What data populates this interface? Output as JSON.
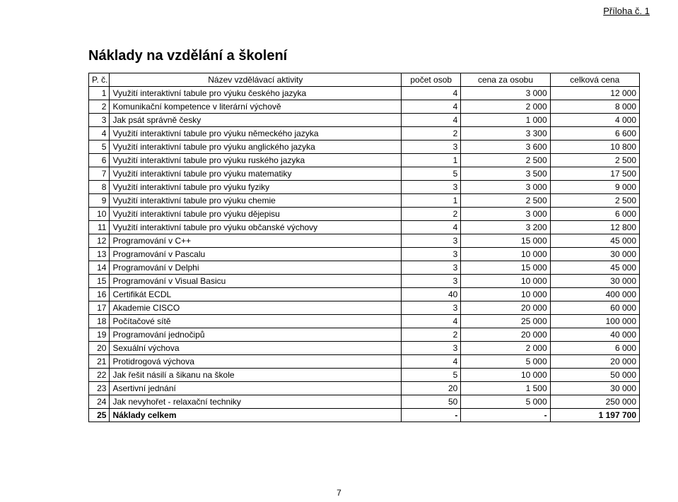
{
  "appendix_label": "Příloha č. 1",
  "title": "Náklady na vzdělání a školení",
  "page_number": "7",
  "table": {
    "columns": [
      "P. č.",
      "Název vzdělávací aktivity",
      "počet osob",
      "cena za osobu",
      "celková cena"
    ],
    "rows": [
      [
        "1",
        "Využití interaktivní tabule pro výuku českého jazyka",
        "4",
        "3 000",
        "12 000"
      ],
      [
        "2",
        "Komunikační kompetence v literární výchově",
        "4",
        "2 000",
        "8 000"
      ],
      [
        "3",
        "Jak psát správně česky",
        "4",
        "1 000",
        "4 000"
      ],
      [
        "4",
        "Využití interaktivní tabule pro výuku německého jazyka",
        "2",
        "3 300",
        "6 600"
      ],
      [
        "5",
        "Využití interaktivní tabule pro výuku anglického jazyka",
        "3",
        "3 600",
        "10 800"
      ],
      [
        "6",
        "Využití interaktivní tabule pro výuku ruského jazyka",
        "1",
        "2 500",
        "2 500"
      ],
      [
        "7",
        "Využití interaktivní tabule pro výuku matematiky",
        "5",
        "3 500",
        "17 500"
      ],
      [
        "8",
        "Využití interaktivní tabule pro výuku fyziky",
        "3",
        "3 000",
        "9 000"
      ],
      [
        "9",
        "Využití interaktivní tabule pro výuku chemie",
        "1",
        "2 500",
        "2 500"
      ],
      [
        "10",
        "Využití interaktivní tabule pro výuku dějepisu",
        "2",
        "3 000",
        "6 000"
      ],
      [
        "11",
        "Využití interaktivní tabule pro výuku občanské výchovy",
        "4",
        "3 200",
        "12 800"
      ],
      [
        "12",
        "Programování v C++",
        "3",
        "15 000",
        "45 000"
      ],
      [
        "13",
        "Programování v Pascalu",
        "3",
        "10 000",
        "30 000"
      ],
      [
        "14",
        "Programování v Delphi",
        "3",
        "15 000",
        "45 000"
      ],
      [
        "15",
        "Programování v Visual Basicu",
        "3",
        "10 000",
        "30 000"
      ],
      [
        "16",
        "Certifikát ECDL",
        "40",
        "10 000",
        "400 000"
      ],
      [
        "17",
        "Akademie CISCO",
        "3",
        "20 000",
        "60 000"
      ],
      [
        "18",
        "Počítačové sítě",
        "4",
        "25 000",
        "100 000"
      ],
      [
        "19",
        "Programování jednočipů",
        "2",
        "20 000",
        "40 000"
      ],
      [
        "20",
        "Sexuální výchova",
        "3",
        "2 000",
        "6 000"
      ],
      [
        "21",
        "Protidrogová výchova",
        "4",
        "5 000",
        "20 000"
      ],
      [
        "22",
        "Jak řešit násilí a šikanu na škole",
        "5",
        "10 000",
        "50 000"
      ],
      [
        "23",
        "Asertivní jednání",
        "20",
        "1 500",
        "30 000"
      ],
      [
        "24",
        "Jak nevyhořet - relaxační techniky",
        "50",
        "5 000",
        "250 000"
      ]
    ],
    "total_row": [
      "25",
      "Náklady celkem",
      "-",
      "-",
      "1 197 700"
    ]
  }
}
